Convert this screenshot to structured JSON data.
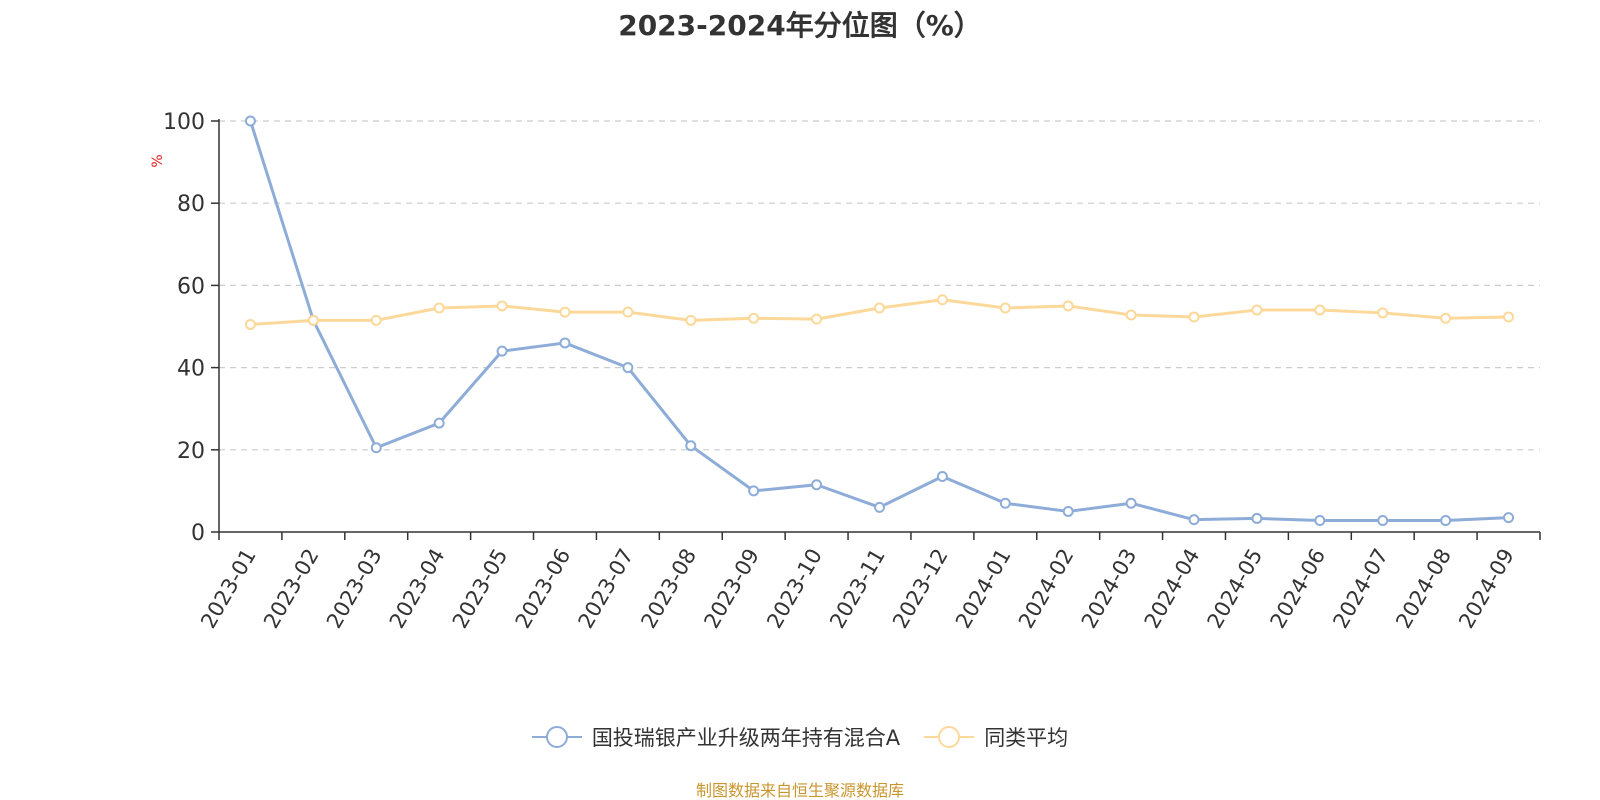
{
  "chart_data": {
    "type": "line",
    "title": "2023-2024年分位图（%）",
    "ylabel": "%",
    "xlabel": "",
    "ylim": [
      0,
      100
    ],
    "yticks": [
      0,
      20,
      40,
      60,
      80,
      100
    ],
    "grid": true,
    "legend_position": "bottom",
    "categories": [
      "2023-01",
      "2023-02",
      "2023-03",
      "2023-04",
      "2023-05",
      "2023-06",
      "2023-07",
      "2023-08",
      "2023-09",
      "2023-10",
      "2023-11",
      "2023-12",
      "2024-01",
      "2024-02",
      "2024-03",
      "2024-04",
      "2024-05",
      "2024-06",
      "2024-07",
      "2024-08",
      "2024-09"
    ],
    "series": [
      {
        "name": "国投瑞银产业升级两年持有混合A",
        "color": "#8eacd8",
        "values": [
          100,
          51.5,
          20.5,
          26.5,
          44,
          46,
          40,
          21,
          10,
          11.5,
          6,
          13.5,
          7,
          5,
          7,
          3,
          3.3,
          2.8,
          2.8,
          2.8,
          3.5
        ]
      },
      {
        "name": "同类平均",
        "color": "#fcd89a",
        "values": [
          50.5,
          51.5,
          51.5,
          54.5,
          55,
          53.5,
          53.5,
          51.5,
          52,
          51.8,
          54.5,
          56.5,
          54.5,
          55,
          52.8,
          52.3,
          54,
          54,
          53.3,
          52,
          52.3
        ]
      }
    ]
  },
  "footer": "制图数据来自恒生聚源数据库"
}
